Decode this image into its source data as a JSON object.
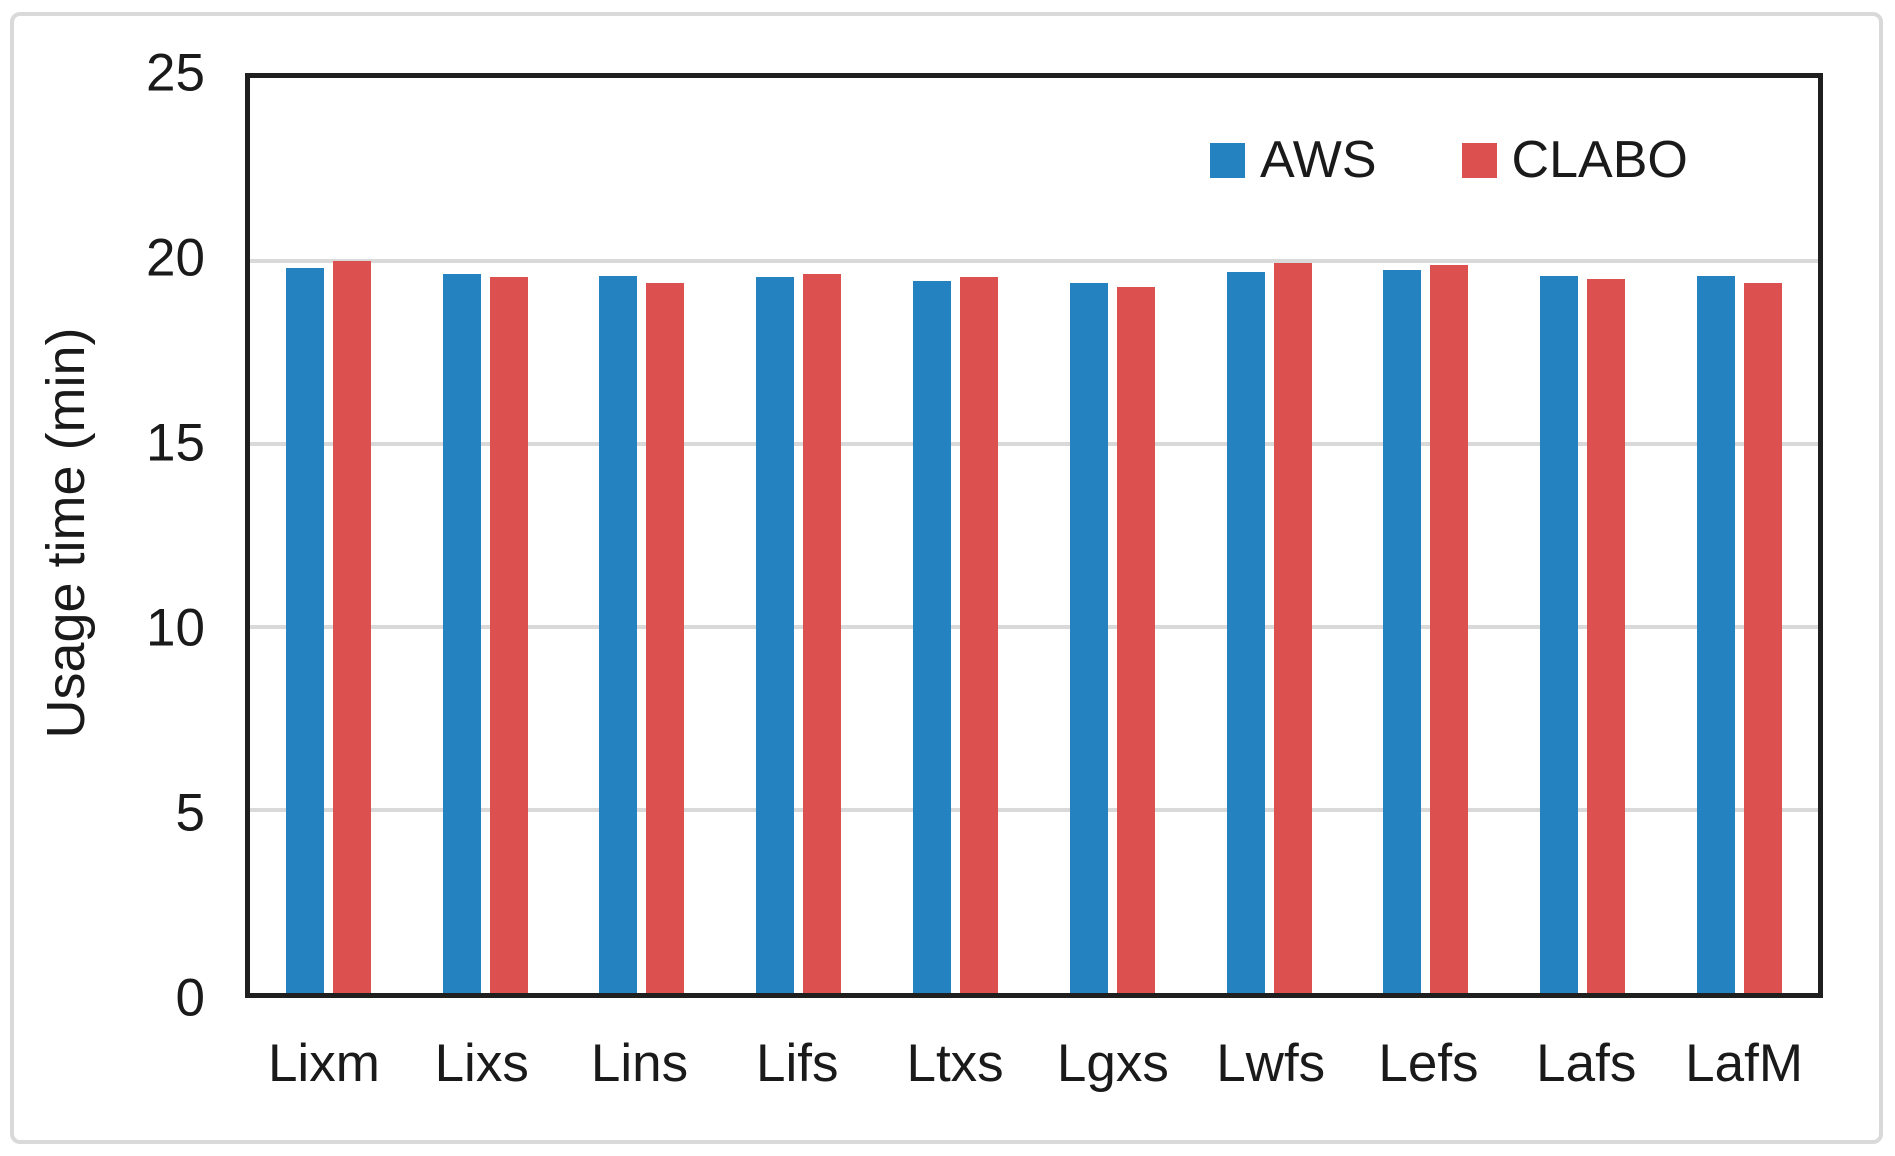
{
  "chart_data": {
    "type": "bar",
    "title": "",
    "xlabel": "",
    "ylabel": "Usage time (min)",
    "ylim": [
      0,
      25
    ],
    "yticks": [
      0,
      5,
      10,
      15,
      20,
      25
    ],
    "grid": "horizontal",
    "gridline_values": [
      5,
      10,
      15,
      20
    ],
    "legend_position": "top-right-inside",
    "categories": [
      "Lixm",
      "Lixs",
      "Lins",
      "Lifs",
      "Ltxs",
      "Lgxs",
      "Lwfs",
      "Lefs",
      "Lafs",
      "LafM"
    ],
    "series": [
      {
        "name": "AWS",
        "color": "#2482C1",
        "values": [
          19.8,
          19.65,
          19.6,
          19.55,
          19.45,
          19.4,
          19.7,
          19.75,
          19.6,
          19.6
        ]
      },
      {
        "name": "CLABO",
        "color": "#DC514F",
        "values": [
          20.0,
          19.55,
          19.4,
          19.65,
          19.55,
          19.3,
          19.95,
          19.9,
          19.5,
          19.4
        ]
      }
    ]
  },
  "colors": {
    "axis_border": "#1f1f1f",
    "gridline": "#d9d9d9",
    "figure_frame": "#d9d9d9",
    "text": "#1a1a1a",
    "background": "#ffffff"
  }
}
